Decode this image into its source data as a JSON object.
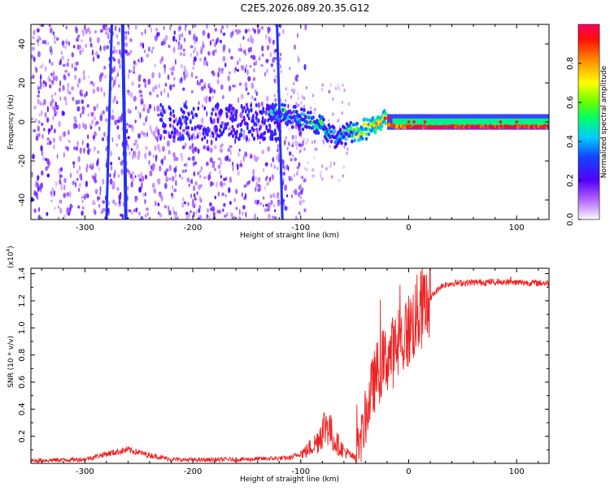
{
  "title": "C2E5.2026.089.20.35.G12",
  "colors": {
    "snr_line": "#ee2222",
    "trace_blue": "#2233ee",
    "scatter_purple": "#7a22ee",
    "frame": "#000000"
  },
  "chart_data": [
    {
      "type": "heatmap",
      "name": "spectrogram",
      "xlabel": "Height of straight line (km)",
      "ylabel": "Frequency (Hz)",
      "xlim": [
        -350,
        130
      ],
      "ylim": [
        -50,
        50
      ],
      "xticks": [
        -300,
        -200,
        -100,
        0,
        100
      ],
      "xtick_labels": [
        "-300",
        "-200",
        "-100",
        "0",
        "100"
      ],
      "yticks": [
        -40,
        -20,
        0,
        20,
        40
      ],
      "ytick_labels": [
        "-40",
        "-20",
        "0",
        "20",
        "40"
      ],
      "grid": false,
      "colorbar": {
        "label": "Normalized spectral amplitude",
        "range": [
          0,
          1
        ],
        "ticks": [
          0.0,
          0.2,
          0.4,
          0.6,
          0.8
        ],
        "tick_labels": [
          "0.0",
          "0.2",
          "0.4",
          "0.6",
          "0.8"
        ],
        "colormap": "rainbow (magenta-white to red)"
      },
      "features": {
        "noise_region_x": [
          -350,
          -115
        ],
        "signal_track": [
          {
            "x": -125,
            "f": 4,
            "amp": 0.45
          },
          {
            "x": -100,
            "f": 2,
            "amp": 0.4
          },
          {
            "x": -80,
            "f": -3,
            "amp": 0.5
          },
          {
            "x": -65,
            "f": -10,
            "amp": 0.4
          },
          {
            "x": -55,
            "f": -5,
            "amp": 0.55
          },
          {
            "x": -40,
            "f": -4,
            "amp": 0.7
          },
          {
            "x": -25,
            "f": 2,
            "amp": 0.75
          },
          {
            "x": -10,
            "f": 0,
            "amp": 0.85
          },
          {
            "x": 0,
            "f": 0,
            "amp": 0.9
          },
          {
            "x": 50,
            "f": 0,
            "amp": 0.95
          },
          {
            "x": 130,
            "f": 0,
            "amp": 0.9
          }
        ],
        "diagonal_streaks": [
          {
            "x_at_top": -275,
            "x_at_bottom": -280
          },
          {
            "x_at_top": -265,
            "x_at_bottom": -262
          },
          {
            "x_at_top": -122,
            "x_at_bottom": -117
          }
        ]
      }
    },
    {
      "type": "line",
      "name": "snr",
      "xlabel": "Height of straight line (km)",
      "ylabel": "SNR (10 * v/v)",
      "y_scale_label": "(x10",
      "y_scale_exponent": "4",
      "y_scale_close": ")",
      "xlim": [
        -350,
        130
      ],
      "ylim": [
        0,
        14400
      ],
      "xticks": [
        -300,
        -200,
        -100,
        0,
        100
      ],
      "xtick_labels": [
        "-300",
        "-200",
        "-100",
        "0",
        "100"
      ],
      "yticks": [
        2000,
        4000,
        6000,
        8000,
        10000,
        12000,
        14000
      ],
      "ytick_labels": [
        "0.2",
        "0.4",
        "0.6",
        "0.8",
        "1.0",
        "1.2",
        "1.4"
      ],
      "grid": false,
      "series": [
        {
          "name": "SNR",
          "x": [
            -350,
            -300,
            -280,
            -260,
            -240,
            -220,
            -200,
            -150,
            -110,
            -95,
            -85,
            -80,
            -75,
            -70,
            -60,
            -50,
            -45,
            -40,
            -35,
            -30,
            -20,
            -10,
            0,
            10,
            20,
            30,
            40,
            60,
            80,
            100,
            130
          ],
          "y": [
            200,
            300,
            700,
            1000,
            600,
            300,
            250,
            300,
            400,
            900,
            1600,
            2500,
            3000,
            1800,
            900,
            400,
            1500,
            3200,
            5200,
            6500,
            7800,
            8600,
            9800,
            11200,
            12200,
            13100,
            13300,
            13350,
            13400,
            13350,
            13300
          ]
        }
      ]
    }
  ]
}
